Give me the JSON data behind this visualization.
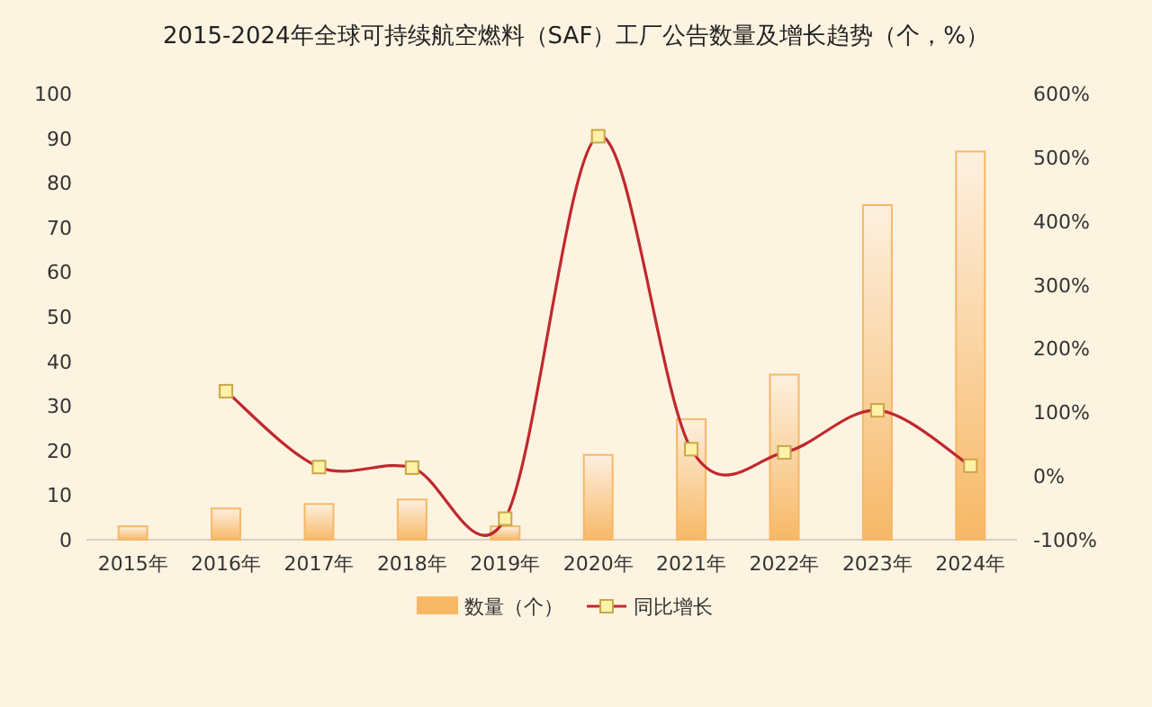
{
  "chart_data": {
    "type": "bar",
    "title": "2015-2024年全球可持续航空燃料（SAF）工厂公告数量及增长趋势（个，%）",
    "categories": [
      "2015年",
      "2016年",
      "2017年",
      "2018年",
      "2019年",
      "2020年",
      "2021年",
      "2022年",
      "2023年",
      "2024年"
    ],
    "series": [
      {
        "name": "数量（个）",
        "color": "#f7b866",
        "values": [
          3,
          7,
          8,
          9,
          3,
          19,
          27,
          37,
          75,
          87
        ]
      },
      {
        "name": "同比增长",
        "type": "line",
        "axis": "y2",
        "color": "#c0282d",
        "values": [
          null,
          133,
          14,
          13,
          -67,
          533,
          42,
          37,
          103,
          16
        ]
      }
    ],
    "ylim": [
      0,
      100
    ],
    "yticks": [
      0,
      10,
      20,
      30,
      40,
      50,
      60,
      70,
      80,
      90,
      100
    ],
    "y2lim": [
      -100,
      600
    ],
    "y2ticks": [
      {
        "value": -100,
        "label": "-100%"
      },
      {
        "value": 0,
        "label": "0%"
      },
      {
        "value": 100,
        "label": "100%"
      },
      {
        "value": 200,
        "label": "200%"
      },
      {
        "value": 300,
        "label": "300%"
      },
      {
        "value": 400,
        "label": "400%"
      },
      {
        "value": 500,
        "label": "500%"
      },
      {
        "value": 600,
        "label": "600%"
      }
    ],
    "marker": "square",
    "legend": "bottom",
    "grid": false
  }
}
